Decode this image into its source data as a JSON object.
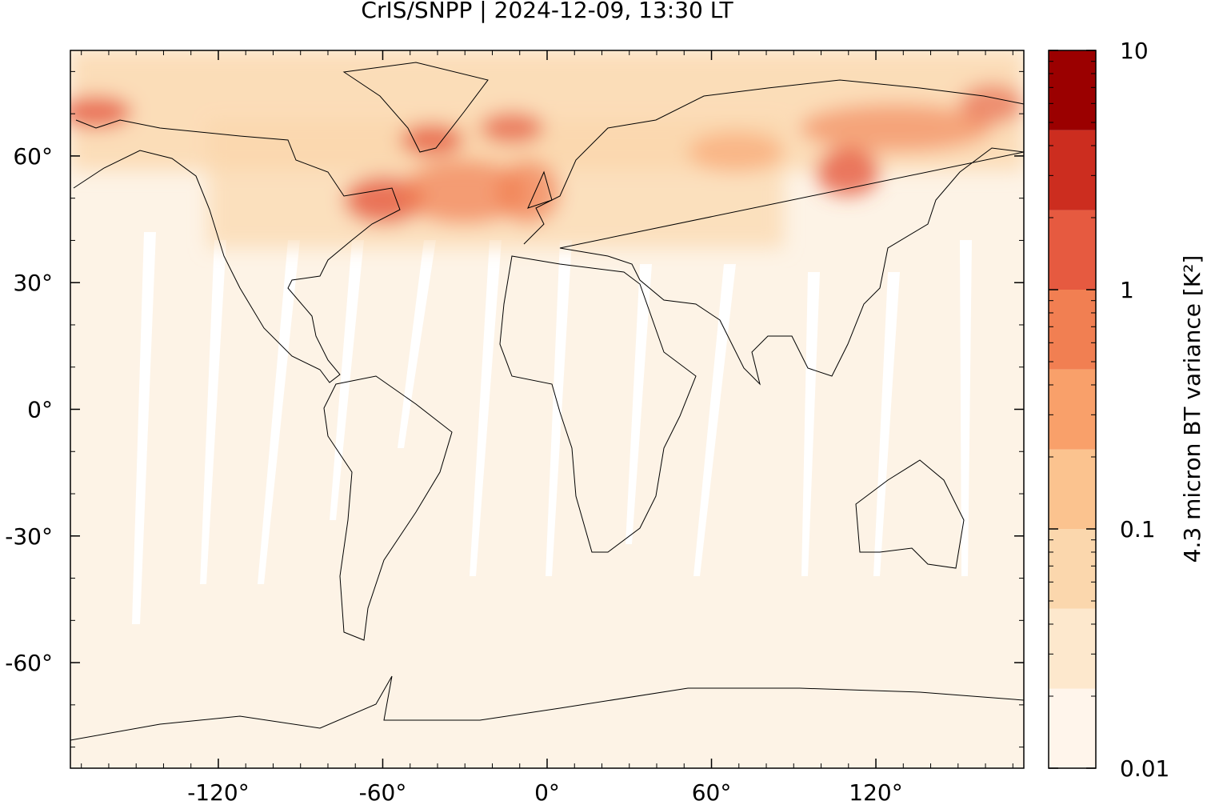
{
  "chart_data": {
    "type": "map",
    "title": "CrIS/SNPP | 2024-12-09, 13:30 LT",
    "xlim": [
      -174,
      174
    ],
    "ylim": [
      -85,
      85
    ],
    "xticks": [
      {
        "value": -120,
        "label": "-120°"
      },
      {
        "value": -60,
        "label": "-60°"
      },
      {
        "value": 0,
        "label": "0°"
      },
      {
        "value": 60,
        "label": "60°"
      },
      {
        "value": 120,
        "label": "120°"
      }
    ],
    "yticks": [
      {
        "value": -60,
        "label": "-60°"
      },
      {
        "value": -30,
        "label": "-30°"
      },
      {
        "value": 0,
        "label": "0°"
      },
      {
        "value": 30,
        "label": "30°"
      },
      {
        "value": 60,
        "label": "60°"
      }
    ],
    "colorbar": {
      "label": "4.3 micron BT variance [K²]",
      "scale": "log",
      "levels": [
        0.01,
        0.0215,
        0.0464,
        0.1,
        0.215,
        0.464,
        1,
        2.15,
        4.64,
        10
      ],
      "colors": [
        "#fff5eb",
        "#fde8cd",
        "#fbd7ad",
        "#fbc38f",
        "#f9a06a",
        "#f17f52",
        "#e65a40",
        "#cc2d1f",
        "#9b0000"
      ],
      "ticks": [
        0.01,
        0.1,
        1,
        10
      ]
    }
  }
}
